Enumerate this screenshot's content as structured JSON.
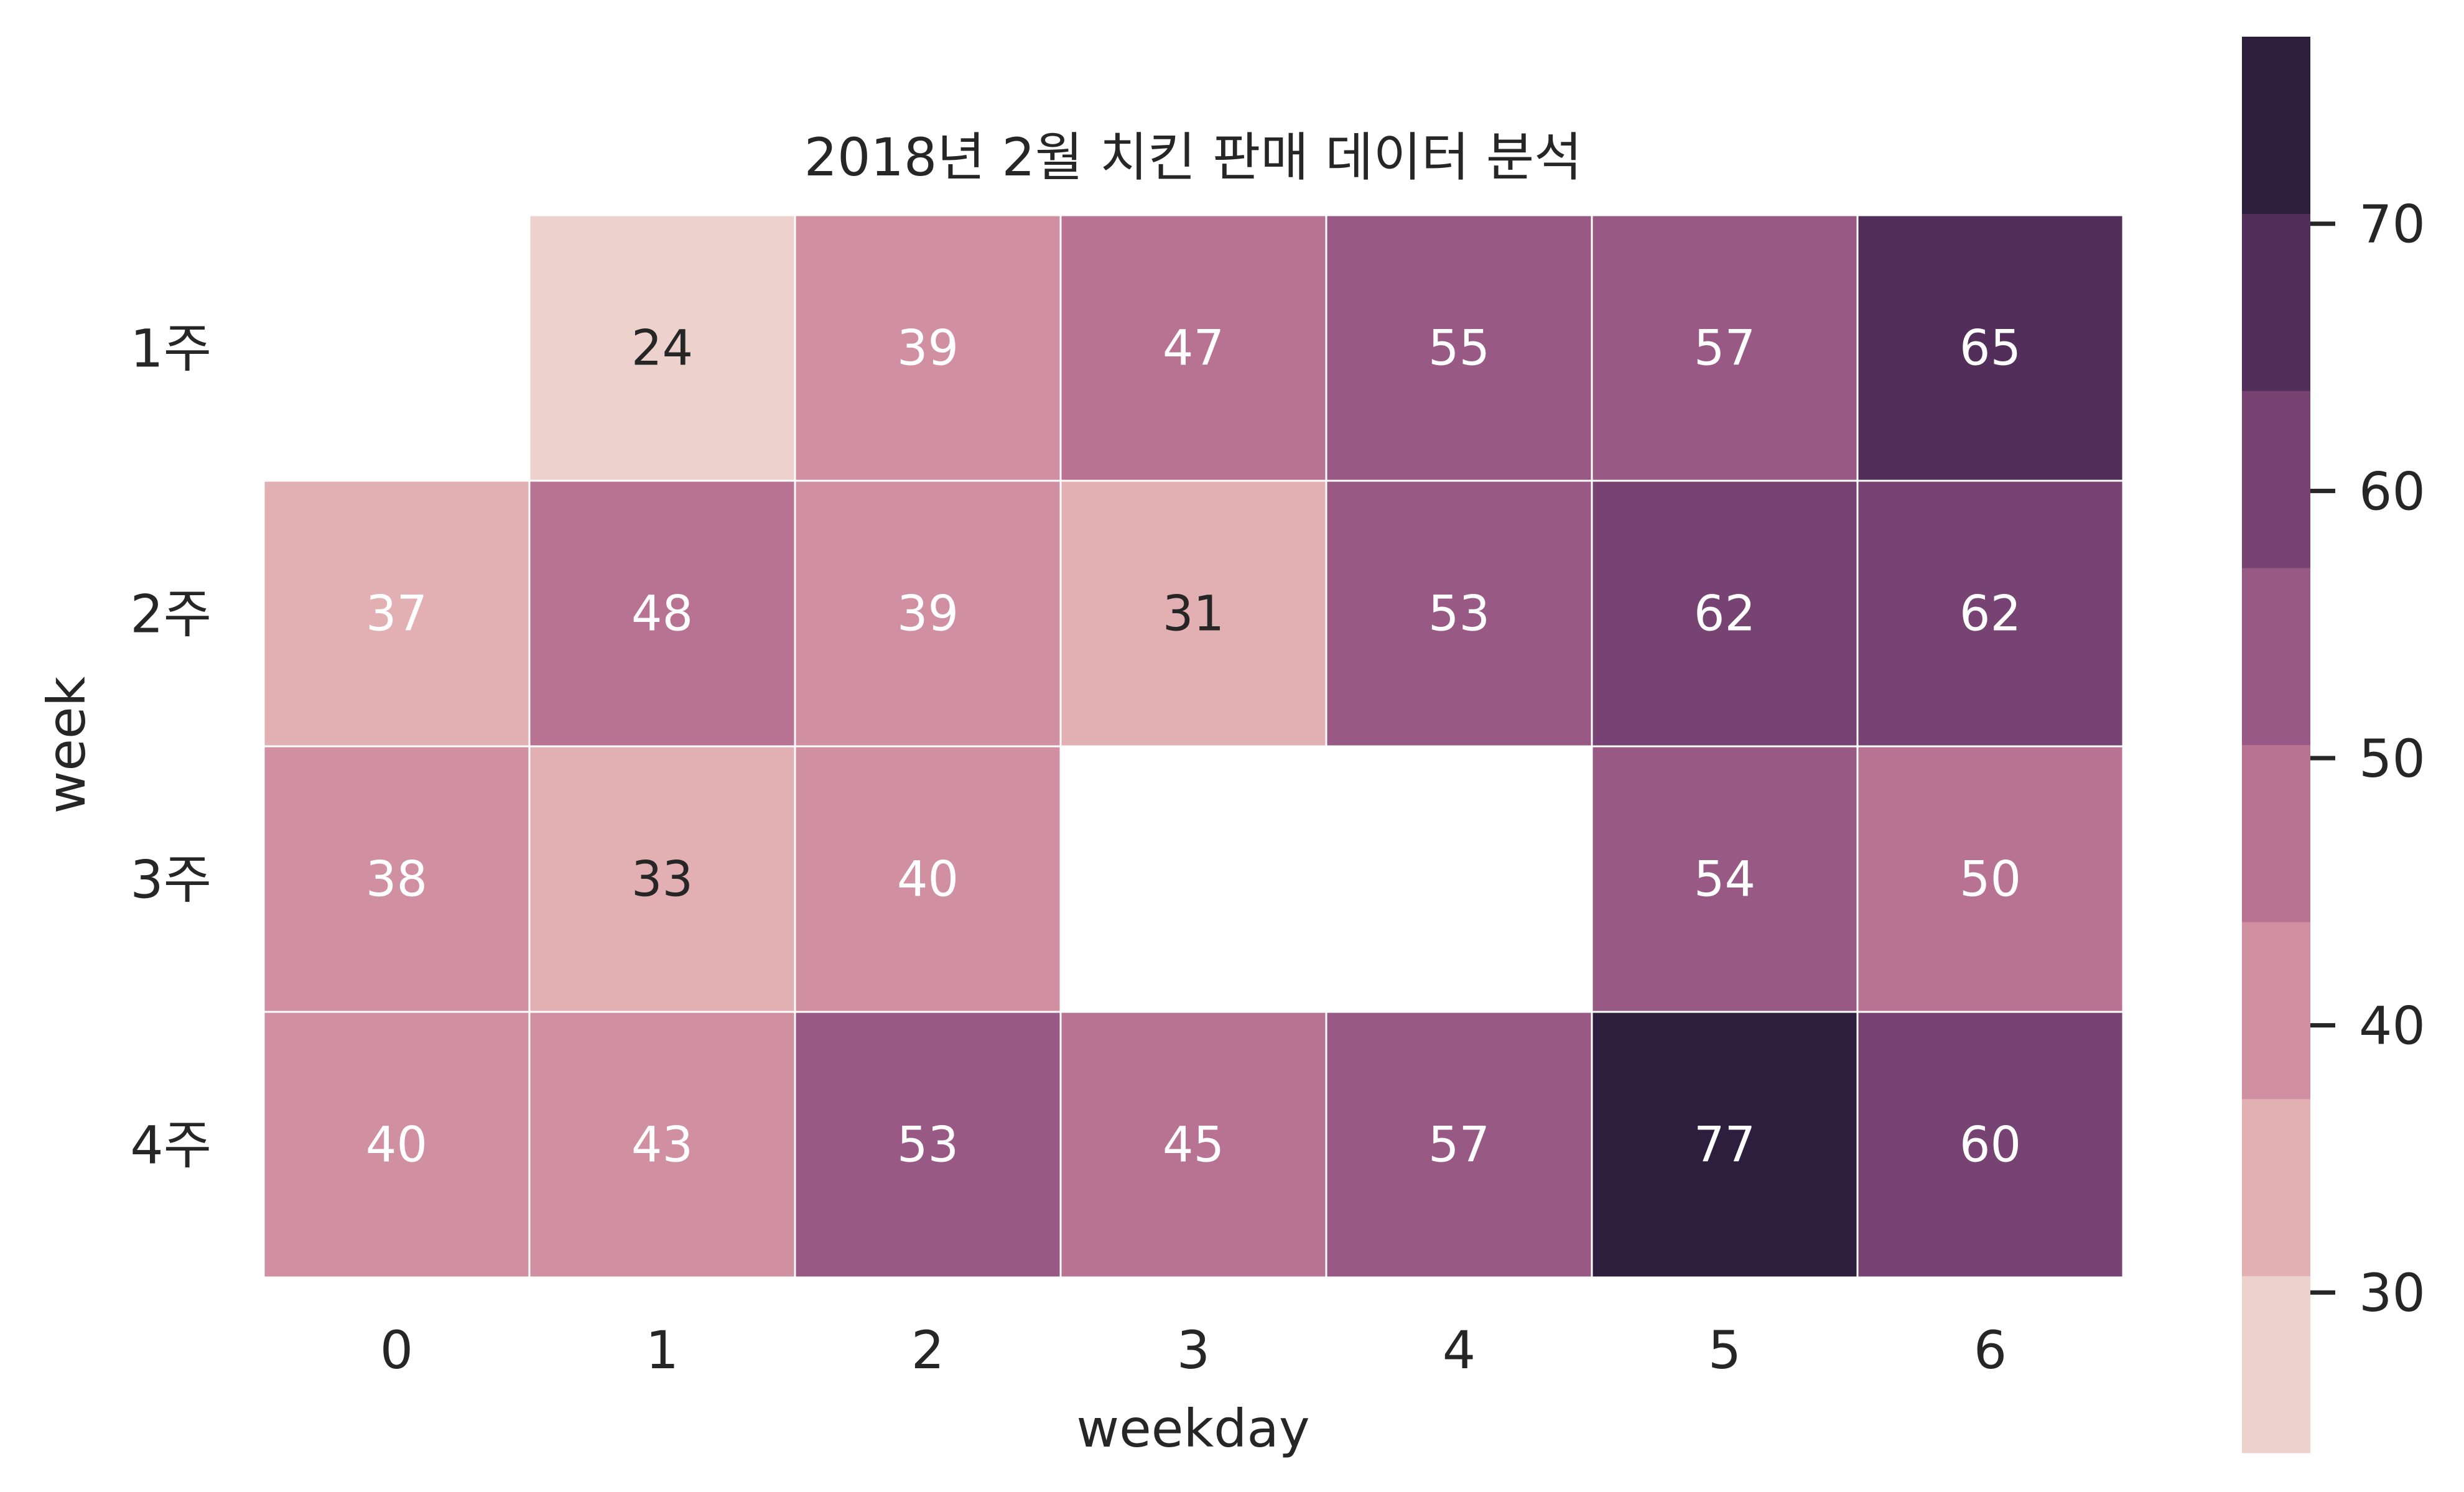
{
  "chart_data": {
    "type": "heatmap",
    "title": "2018년 2월 치킨 판매 데이터 분석",
    "xlabel": "weekday",
    "ylabel": "week",
    "x_categories": [
      "0",
      "1",
      "2",
      "3",
      "4",
      "5",
      "6"
    ],
    "y_categories": [
      "1주",
      "2주",
      "3주",
      "4주"
    ],
    "values": [
      [
        null,
        24,
        39,
        47,
        55,
        57,
        65
      ],
      [
        37,
        48,
        39,
        31,
        53,
        62,
        62
      ],
      [
        38,
        33,
        40,
        null,
        null,
        54,
        50
      ],
      [
        40,
        43,
        53,
        45,
        57,
        77,
        60
      ]
    ],
    "annotations": "cell values shown",
    "colorbar": {
      "range": [
        24,
        77
      ],
      "ticks": [
        30,
        40,
        50,
        60,
        70
      ],
      "bands": [
        {
          "from": 24.0,
          "to": 30.625,
          "color": "#ecd1cc"
        },
        {
          "from": 30.625,
          "to": 37.25,
          "color": "#e2b0b3"
        },
        {
          "from": 37.25,
          "to": 43.875,
          "color": "#d090a2"
        },
        {
          "from": 43.875,
          "to": 50.5,
          "color": "#b87292"
        },
        {
          "from": 50.5,
          "to": 57.125,
          "color": "#985a85"
        },
        {
          "from": 57.125,
          "to": 63.75,
          "color": "#764372"
        },
        {
          "from": 63.75,
          "to": 70.375,
          "color": "#522e5a"
        },
        {
          "from": 70.375,
          "to": 77.0,
          "color": "#2d1e3d"
        }
      ]
    },
    "light_text_color": "#ffffff",
    "dark_text_color": "#262626",
    "cell_border_color": "#ffffff"
  }
}
